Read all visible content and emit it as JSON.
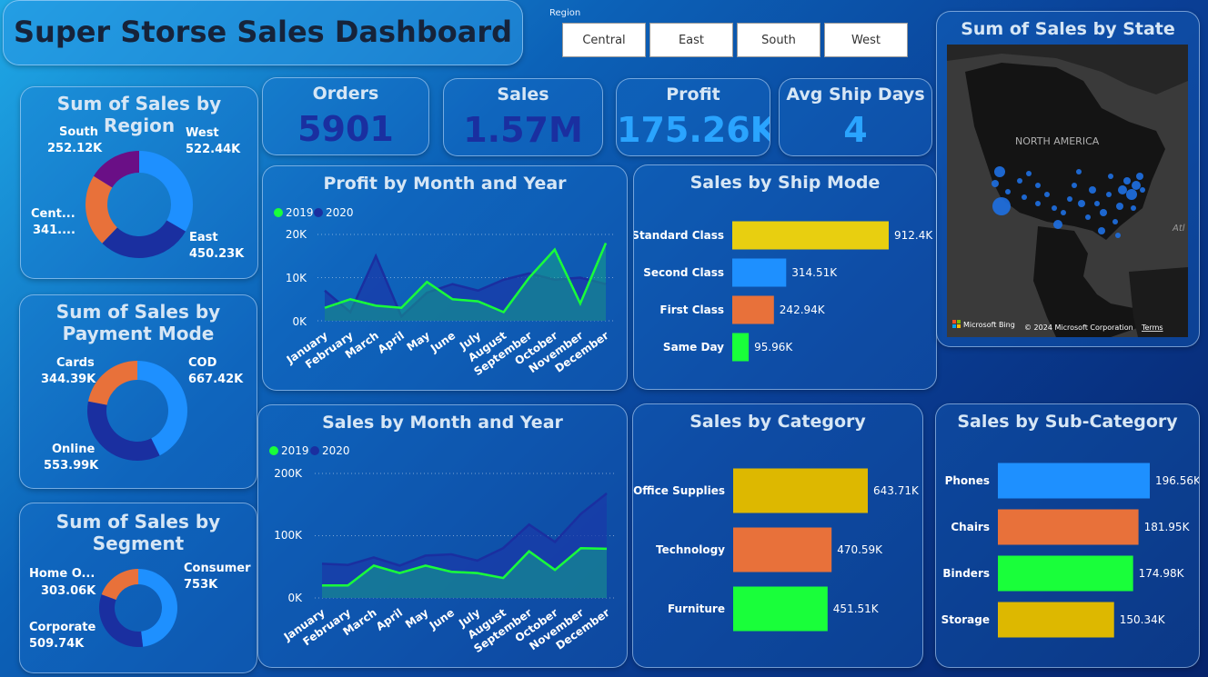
{
  "header": {
    "title": "Super Storse Sales Dashboard"
  },
  "slicer": {
    "label": "Region",
    "options": [
      "Central",
      "East",
      "South",
      "West"
    ]
  },
  "kpis": [
    {
      "title": "Orders",
      "value": "5901"
    },
    {
      "title": "Sales",
      "value": "1.57M"
    },
    {
      "title": "Profit",
      "value": "175.26K"
    },
    {
      "title": "Avg Ship Days",
      "value": "4"
    }
  ],
  "colors": {
    "blue": "#1e90ff",
    "navy": "#1a2fa0",
    "orange": "#e8713a",
    "purple": "#6a0f86",
    "green": "#19ff3a",
    "gold": "#ddb800",
    "yellow": "#e8cf10"
  },
  "region_donut": {
    "title": "Sum of Sales by Region",
    "slices": [
      {
        "name": "West",
        "value": "522.44K",
        "amount": 522.44,
        "color": "#1e90ff"
      },
      {
        "name": "East",
        "value": "450.23K",
        "amount": 450.23,
        "color": "#1a2fa0"
      },
      {
        "name": "Cent...",
        "value": "341....",
        "amount": 341.0,
        "color": "#e8713a"
      },
      {
        "name": "South",
        "value": "252.12K",
        "amount": 252.12,
        "color": "#6a0f86"
      }
    ]
  },
  "payment_donut": {
    "title_line1": "Sum of Sales by",
    "title_line2": "Payment Mode",
    "slices": [
      {
        "name": "COD",
        "value": "667.42K",
        "amount": 667.42,
        "color": "#1e90ff"
      },
      {
        "name": "Online",
        "value": "553.99K",
        "amount": 553.99,
        "color": "#1a2fa0"
      },
      {
        "name": "Cards",
        "value": "344.39K",
        "amount": 344.39,
        "color": "#e8713a"
      }
    ]
  },
  "segment_donut": {
    "title_line1": "Sum of Sales by",
    "title_line2": "Segment",
    "slices": [
      {
        "name": "Consumer",
        "value": "753K",
        "amount": 753,
        "color": "#1e90ff"
      },
      {
        "name": "Corporate",
        "value": "509.74K",
        "amount": 509.74,
        "color": "#1a2fa0"
      },
      {
        "name": "Home O...",
        "value": "303.06K",
        "amount": 303.06,
        "color": "#e8713a"
      }
    ]
  },
  "months": [
    "January",
    "February",
    "March",
    "April",
    "May",
    "June",
    "July",
    "August",
    "September",
    "October",
    "November",
    "December"
  ],
  "profit_chart": {
    "title": "Profit by Month and Year",
    "legend": [
      "2019",
      "2020"
    ],
    "ticks": [
      "20K",
      "10K",
      "0K"
    ],
    "ymax": 20000,
    "series_2019": [
      3000,
      5000,
      3500,
      3000,
      9000,
      5000,
      4500,
      2000,
      10000,
      16500,
      4000,
      18000
    ],
    "series_2020": [
      7000,
      2000,
      15000,
      1000,
      6500,
      8500,
      7000,
      9500,
      11000,
      9500,
      10000,
      8500
    ]
  },
  "sales_chart": {
    "title": "Sales by Month and Year",
    "legend": [
      "2019",
      "2020"
    ],
    "ticks": [
      "200K",
      "100K",
      "0K"
    ],
    "ymax": 200000,
    "series_2019": [
      20000,
      20000,
      52000,
      40000,
      52000,
      42000,
      40000,
      32000,
      75000,
      45000,
      80000,
      79000
    ],
    "series_2020": [
      55000,
      53000,
      65000,
      52000,
      68000,
      70000,
      60000,
      80000,
      118000,
      90000,
      135000,
      168000
    ]
  },
  "ship_mode": {
    "title": "Sales by Ship Mode",
    "bars": [
      {
        "name": "Standard Class",
        "value": "912.4K",
        "amount": 912.4,
        "color": "#e8cf10"
      },
      {
        "name": "Second Class",
        "value": "314.51K",
        "amount": 314.51,
        "color": "#1e90ff"
      },
      {
        "name": "First Class",
        "value": "242.94K",
        "amount": 242.94,
        "color": "#e8713a"
      },
      {
        "name": "Same Day",
        "value": "95.96K",
        "amount": 95.96,
        "color": "#19ff3a"
      }
    ]
  },
  "category": {
    "title": "Sales by Category",
    "bars": [
      {
        "name": "Office Supplies",
        "value": "643.71K",
        "amount": 643.71,
        "color": "#ddb800"
      },
      {
        "name": "Technology",
        "value": "470.59K",
        "amount": 470.59,
        "color": "#e8713a"
      },
      {
        "name": "Furniture",
        "value": "451.51K",
        "amount": 451.51,
        "color": "#19ff3a"
      }
    ]
  },
  "subcategory": {
    "title": "Sales by Sub-Category",
    "bars": [
      {
        "name": "Phones",
        "value": "196.56K",
        "amount": 196.56,
        "color": "#1e90ff"
      },
      {
        "name": "Chairs",
        "value": "181.95K",
        "amount": 181.95,
        "color": "#e8713a"
      },
      {
        "name": "Binders",
        "value": "174.98K",
        "amount": 174.98,
        "color": "#19ff3a"
      },
      {
        "name": "Storage",
        "value": "150.34K",
        "amount": 150.34,
        "color": "#ddb800"
      }
    ]
  },
  "map": {
    "title": "Sum of Sales by State",
    "region_label": "NORTH AMERICA",
    "ocean_label": "Atl",
    "brand": "Microsoft Bing",
    "copyright": "© 2024 Microsoft Corporation",
    "terms": "Terms"
  },
  "chart_data": [
    {
      "type": "line",
      "title": "Profit by Month and Year",
      "x": [
        "January",
        "February",
        "March",
        "April",
        "May",
        "June",
        "July",
        "August",
        "September",
        "October",
        "November",
        "December"
      ],
      "series": [
        {
          "name": "2019",
          "values": [
            3000,
            5000,
            3500,
            3000,
            9000,
            5000,
            4500,
            2000,
            10000,
            16500,
            4000,
            18000
          ]
        },
        {
          "name": "2020",
          "values": [
            7000,
            2000,
            15000,
            1000,
            6500,
            8500,
            7000,
            9500,
            11000,
            9500,
            10000,
            8500
          ]
        }
      ],
      "ylim": [
        0,
        20000
      ]
    },
    {
      "type": "line",
      "title": "Sales by Month and Year",
      "x": [
        "January",
        "February",
        "March",
        "April",
        "May",
        "June",
        "July",
        "August",
        "September",
        "October",
        "November",
        "December"
      ],
      "series": [
        {
          "name": "2019",
          "values": [
            20000,
            20000,
            52000,
            40000,
            52000,
            42000,
            40000,
            32000,
            75000,
            45000,
            80000,
            79000
          ]
        },
        {
          "name": "2020",
          "values": [
            55000,
            53000,
            65000,
            52000,
            68000,
            70000,
            60000,
            80000,
            118000,
            90000,
            135000,
            168000
          ]
        }
      ],
      "ylim": [
        0,
        200000
      ]
    },
    {
      "type": "bar",
      "title": "Sales by Ship Mode",
      "categories": [
        "Standard Class",
        "Second Class",
        "First Class",
        "Same Day"
      ],
      "values": [
        912.4,
        314.51,
        242.94,
        95.96
      ]
    },
    {
      "type": "bar",
      "title": "Sales by Category",
      "categories": [
        "Office Supplies",
        "Technology",
        "Furniture"
      ],
      "values": [
        643.71,
        470.59,
        451.51
      ]
    },
    {
      "type": "bar",
      "title": "Sales by Sub-Category",
      "categories": [
        "Phones",
        "Chairs",
        "Binders",
        "Storage"
      ],
      "values": [
        196.56,
        181.95,
        174.98,
        150.34
      ]
    },
    {
      "type": "pie",
      "title": "Sum of Sales by Region",
      "categories": [
        "West",
        "East",
        "Central",
        "South"
      ],
      "values": [
        522.44,
        450.23,
        341.0,
        252.12
      ]
    },
    {
      "type": "pie",
      "title": "Sum of Sales by Payment Mode",
      "categories": [
        "COD",
        "Online",
        "Cards"
      ],
      "values": [
        667.42,
        553.99,
        344.39
      ]
    },
    {
      "type": "pie",
      "title": "Sum of Sales by Segment",
      "categories": [
        "Consumer",
        "Corporate",
        "Home O..."
      ],
      "values": [
        753,
        509.74,
        303.06
      ]
    }
  ]
}
